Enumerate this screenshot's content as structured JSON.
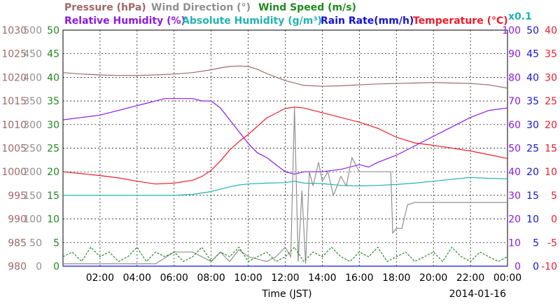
{
  "chart_data": {
    "type": "line",
    "title_date": "2014-01-16",
    "xlabel": "Time (JST)",
    "x_ticks": [
      "02:00",
      "04:00",
      "06:00",
      "08:00",
      "10:00",
      "12:00",
      "14:00",
      "16:00",
      "18:00",
      "20:00",
      "22:00",
      "00:00"
    ],
    "x_range_hours": [
      0,
      24
    ],
    "grid": true,
    "legend_placement": "top",
    "legend": [
      {
        "label": "Pressure (hPa)",
        "color": "#a06868"
      },
      {
        "label": "Wind Direction (°)",
        "color": "#909090"
      },
      {
        "label": "Wind Speed (m/s)",
        "color": "#1f8a1f"
      },
      {
        "label": "Relative Humidity (%)",
        "color": "#8c1ae6"
      },
      {
        "label": "Absolute Humidity (g/m³)",
        "color": "#22b2b2"
      },
      {
        "label": "Rain Rate(mm/h)",
        "color": "#1414d8"
      },
      {
        "label": "Temperature (°C)",
        "color": "#ee1c2a"
      },
      {
        "label": "x0.1",
        "color": "#22b2b2"
      }
    ],
    "axes": {
      "pressure": {
        "ticks": [
          "1030",
          "1025",
          "1020",
          "1015",
          "1010",
          "1005",
          "1000",
          "995",
          "990",
          "985",
          "980"
        ],
        "ylim": [
          980,
          1030
        ],
        "color": "#a06868"
      },
      "wind_direction": {
        "ticks": [
          "500",
          "450",
          "400",
          "350",
          "300",
          "250",
          "200",
          "150",
          "100",
          "50",
          "0"
        ],
        "ylim": [
          0,
          500
        ],
        "color": "#909090"
      },
      "wind_speed": {
        "ticks": [
          "50",
          "45",
          "40",
          "35",
          "30",
          "25",
          "20",
          "15",
          "10",
          "5",
          "0"
        ],
        "ylim": [
          0,
          50
        ],
        "color": "#1f8a1f"
      },
      "relative_humidity": {
        "ticks": [
          "100",
          "90",
          "80",
          "70",
          "60",
          "50",
          "40",
          "30",
          "20",
          "10",
          "0"
        ],
        "ylim": [
          0,
          100
        ],
        "color": "#8c1ae6"
      },
      "rain_rate": {
        "ticks": [
          "50",
          "45",
          "40",
          "35",
          "30",
          "25",
          "20",
          "15",
          "10",
          "5",
          "0"
        ],
        "ylim": [
          0,
          50
        ],
        "color": "#1414d8"
      },
      "temperature": {
        "ticks": [
          "40",
          "35",
          "30",
          "25",
          "20",
          "15",
          "10",
          "5",
          "0",
          "-5",
          "-10"
        ],
        "ylim": [
          -10,
          40
        ],
        "color": "#ee1c2a"
      }
    },
    "series": [
      {
        "name": "Pressure (hPa)",
        "axis": "pressure",
        "color": "#a06868",
        "x": [
          0,
          1,
          2,
          3,
          4,
          5,
          6,
          7,
          8,
          8.5,
          9,
          9.5,
          10,
          10.5,
          11,
          12,
          13,
          14,
          15,
          16,
          17,
          18,
          19,
          20,
          21,
          22,
          23,
          24
        ],
        "y": [
          1021,
          1020.7,
          1020.5,
          1020.4,
          1020.4,
          1020.5,
          1020.7,
          1021.0,
          1021.6,
          1022.0,
          1022.3,
          1022.4,
          1022.3,
          1021.7,
          1020.8,
          1019.3,
          1018.3,
          1018.1,
          1018.2,
          1018.4,
          1018.6,
          1018.7,
          1018.8,
          1018.9,
          1018.8,
          1018.7,
          1018.4,
          1017.7
        ]
      },
      {
        "name": "Relative Humidity (%)",
        "axis": "relative_humidity",
        "color": "#8c1ae6",
        "x": [
          0,
          1,
          2,
          3,
          4,
          4.5,
          5,
          5.5,
          7,
          7.5,
          8,
          8.5,
          9,
          9.5,
          10,
          10.5,
          11,
          11.5,
          12,
          12.5,
          13,
          14,
          15,
          16,
          16.5,
          17,
          18,
          19,
          20,
          21,
          22,
          23,
          24
        ],
        "y": [
          62,
          63,
          64,
          66,
          68,
          69,
          70,
          71,
          71,
          70,
          70,
          67,
          62,
          57,
          52,
          48,
          46,
          43,
          40,
          39,
          40,
          40,
          41,
          43,
          42,
          44,
          47,
          51,
          55,
          59,
          63,
          66,
          67
        ]
      },
      {
        "name": "Absolute Humidity (g/m³)",
        "axis": "pressure",
        "color": "#22b2b2",
        "x": [
          0,
          1,
          2,
          3,
          4,
          5,
          6,
          7,
          7.5,
          8,
          8.5,
          9,
          9.5,
          10,
          11,
          12,
          12.5,
          13,
          14,
          15,
          16,
          17,
          18,
          19,
          20,
          21,
          22,
          23,
          24
        ],
        "y": [
          995,
          995,
          995,
          995,
          995,
          995,
          995,
          995.2,
          995.5,
          995.8,
          996.3,
          996.8,
          997.2,
          997.4,
          997.6,
          997.7,
          998.0,
          997.6,
          997.5,
          997.1,
          997.0,
          997.1,
          997.3,
          997.6,
          998.0,
          998.4,
          998.8,
          998.6,
          998.5
        ]
      },
      {
        "name": "Temperature (°C)",
        "axis": "temperature",
        "color": "#ee1c2a",
        "x": [
          0,
          1,
          2,
          3,
          4,
          5,
          6,
          7,
          7.5,
          8,
          8.5,
          9,
          9.5,
          10,
          11,
          12,
          12.5,
          13,
          14,
          15,
          16,
          17,
          18,
          19,
          20,
          21,
          22,
          23,
          24
        ],
        "y": [
          10,
          9.6,
          9.2,
          8.7,
          8.0,
          7.4,
          7.6,
          8.2,
          9.0,
          10.3,
          12.3,
          14.6,
          16.4,
          17.9,
          21.4,
          23.4,
          23.7,
          23.5,
          22.5,
          21.5,
          20.5,
          19.2,
          17.3,
          16.1,
          15.6,
          15.0,
          14.4,
          13.6,
          12.8
        ]
      },
      {
        "name": "Wind Direction (°)",
        "axis": "wind_direction",
        "color": "#909090",
        "x": [
          0,
          1,
          2,
          3,
          4,
          5,
          6,
          7,
          8,
          8.5,
          9,
          9.5,
          10,
          10.5,
          11,
          11.5,
          12,
          12.3,
          12.5,
          12.7,
          12.9,
          13.1,
          13.3,
          13.5,
          13.8,
          14,
          14.3,
          14.6,
          15,
          15.3,
          15.6,
          16,
          16.5,
          17,
          17.5,
          17.7,
          17.8,
          18,
          18.3,
          18.6,
          19,
          20,
          21,
          22,
          23,
          24
        ],
        "y": [
          5,
          5,
          5,
          5,
          5,
          5,
          30,
          30,
          10,
          30,
          10,
          35,
          20,
          15,
          10,
          20,
          40,
          20,
          335,
          10,
          160,
          5,
          200,
          170,
          220,
          180,
          200,
          150,
          190,
          170,
          230,
          200,
          200,
          200,
          200,
          200,
          70,
          80,
          80,
          130,
          135,
          135,
          135,
          135,
          135,
          135
        ]
      },
      {
        "name": "Wind Speed (m/s)",
        "axis": "wind_speed",
        "color": "#1f8a1f",
        "x": [
          0,
          0.5,
          1,
          1.5,
          2,
          2.5,
          3,
          3.5,
          4,
          4.5,
          5,
          5.5,
          6,
          6.5,
          7,
          7.5,
          8,
          8.5,
          9,
          9.5,
          10,
          10.5,
          11,
          11.5,
          12,
          12.5,
          13,
          13.5,
          14,
          14.5,
          15,
          15.5,
          16,
          16.5,
          17,
          17.5,
          18,
          18.5,
          19,
          19.5,
          20,
          20.5,
          21,
          21.5,
          22,
          22.5,
          23,
          23.5,
          24
        ],
        "y": [
          2,
          3,
          1,
          4,
          2,
          3,
          1,
          2,
          4,
          1,
          3,
          2,
          3,
          1,
          2,
          4,
          1,
          3,
          2,
          4,
          1,
          2,
          3,
          1,
          2,
          4,
          1,
          3,
          2,
          4,
          2,
          1,
          3,
          2,
          4,
          1,
          2,
          3,
          1,
          2,
          3,
          1,
          4,
          2,
          1,
          3,
          2,
          1,
          2
        ]
      },
      {
        "name": "Rain Rate(mm/h)",
        "axis": "rain_rate",
        "color": "#1414d8",
        "x": [
          0,
          24
        ],
        "y": [
          0,
          0
        ]
      }
    ]
  }
}
